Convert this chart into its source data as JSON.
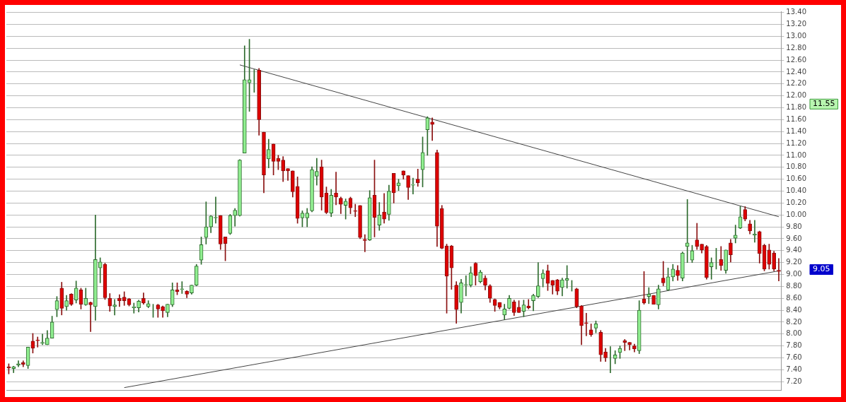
{
  "chart_data": {
    "type": "candlestick",
    "categories": [
      null,
      null,
      null,
      null,
      null,
      null,
      null,
      null,
      null,
      null,
      null,
      null,
      null,
      null,
      null,
      null,
      null,
      null,
      null,
      null,
      null,
      null,
      null,
      null,
      null,
      null,
      null,
      null,
      null,
      null,
      null,
      null,
      null,
      null,
      null,
      null,
      null,
      null,
      null,
      null,
      null,
      null,
      null,
      null,
      null,
      null,
      null,
      null,
      null,
      null,
      null,
      null,
      null,
      null,
      null,
      null,
      null,
      null,
      null,
      null,
      null,
      null,
      null,
      null,
      null,
      null,
      null,
      null,
      null,
      null,
      null,
      null,
      null,
      null,
      null,
      null,
      null,
      null,
      null,
      null,
      null,
      null,
      null,
      null,
      null,
      null,
      null,
      null,
      null,
      null,
      null,
      null,
      null,
      null,
      null,
      null,
      null,
      null,
      null,
      null,
      null,
      null,
      null,
      null,
      null,
      null,
      null,
      null,
      null,
      null,
      null,
      null,
      null,
      null,
      null,
      null,
      null,
      null,
      null,
      null,
      null,
      null,
      null,
      null,
      null,
      null,
      null,
      null,
      null,
      null,
      null,
      null,
      null,
      null,
      null,
      null,
      null,
      null,
      null,
      null,
      null,
      null,
      null,
      null,
      null,
      null,
      null,
      null,
      null,
      null,
      null,
      null,
      null,
      null,
      null,
      null,
      null,
      null,
      null,
      null,
      null
    ],
    "ohlc": [
      [
        7.45,
        7.5,
        7.33,
        7.43
      ],
      [
        7.42,
        7.46,
        7.35,
        7.45
      ],
      [
        7.48,
        7.55,
        7.45,
        7.5
      ],
      [
        7.52,
        7.55,
        7.45,
        7.49
      ],
      [
        7.47,
        7.78,
        7.42,
        7.78
      ],
      [
        7.88,
        8.01,
        7.68,
        7.76
      ],
      [
        7.9,
        7.95,
        7.78,
        7.89
      ],
      [
        7.84,
        8.0,
        7.82,
        7.86
      ],
      [
        7.82,
        8.06,
        7.82,
        7.93
      ],
      [
        7.93,
        8.3,
        7.93,
        8.2
      ],
      [
        8.41,
        8.63,
        8.29,
        8.56
      ],
      [
        8.77,
        8.87,
        8.32,
        8.43
      ],
      [
        8.46,
        8.65,
        8.4,
        8.56
      ],
      [
        8.67,
        8.68,
        8.48,
        8.5
      ],
      [
        8.57,
        8.89,
        8.52,
        8.77
      ],
      [
        8.74,
        8.77,
        8.42,
        8.5
      ],
      [
        8.49,
        8.77,
        8.48,
        8.6
      ],
      [
        8.53,
        8.54,
        8.04,
        8.49
      ],
      [
        8.46,
        10.0,
        8.23,
        9.25
      ],
      [
        9.11,
        9.28,
        8.86,
        9.21
      ],
      [
        9.17,
        9.19,
        8.58,
        8.61
      ],
      [
        8.6,
        8.68,
        8.38,
        8.47
      ],
      [
        8.46,
        8.58,
        8.32,
        8.49
      ],
      [
        8.6,
        8.66,
        8.46,
        8.56
      ],
      [
        8.62,
        8.71,
        8.48,
        8.56
      ],
      [
        8.59,
        8.6,
        8.47,
        8.49
      ],
      [
        8.44,
        8.52,
        8.35,
        8.46
      ],
      [
        8.44,
        8.57,
        8.37,
        8.55
      ],
      [
        8.6,
        8.69,
        8.5,
        8.52
      ],
      [
        8.46,
        8.56,
        8.44,
        8.51
      ],
      [
        8.49,
        8.5,
        8.28,
        8.49
      ],
      [
        8.49,
        8.5,
        8.28,
        8.42
      ],
      [
        8.46,
        8.47,
        8.28,
        8.39
      ],
      [
        8.36,
        8.5,
        8.29,
        8.5
      ],
      [
        8.49,
        8.86,
        8.46,
        8.74
      ],
      [
        8.74,
        8.86,
        8.66,
        8.71
      ],
      [
        8.75,
        8.88,
        8.68,
        8.76
      ],
      [
        8.72,
        8.73,
        8.61,
        8.67
      ],
      [
        8.69,
        8.82,
        8.67,
        8.82
      ],
      [
        8.82,
        9.17,
        8.81,
        9.14
      ],
      [
        9.24,
        9.63,
        9.17,
        9.5
      ],
      [
        9.62,
        10.22,
        9.51,
        9.8
      ],
      [
        9.8,
        9.99,
        9.7,
        9.98
      ],
      [
        9.95,
        10.3,
        9.86,
        9.96
      ],
      [
        9.99,
        9.99,
        9.42,
        9.51
      ],
      [
        9.63,
        9.63,
        9.23,
        9.52
      ],
      [
        9.69,
        10.01,
        9.67,
        9.99
      ],
      [
        9.99,
        10.11,
        9.81,
        10.08
      ],
      [
        9.99,
        10.93,
        9.98,
        10.92
      ],
      [
        11.04,
        12.84,
        11.04,
        12.27
      ],
      [
        12.22,
        12.95,
        11.74,
        12.27
      ],
      [
        12.36,
        12.44,
        12.06,
        12.36
      ],
      [
        12.43,
        12.46,
        11.34,
        11.6
      ],
      [
        11.39,
        11.39,
        10.37,
        10.67
      ],
      [
        10.94,
        11.27,
        10.79,
        11.1
      ],
      [
        11.19,
        11.19,
        10.67,
        10.9
      ],
      [
        10.95,
        11.0,
        10.76,
        10.9
      ],
      [
        10.92,
        10.98,
        10.56,
        10.74
      ],
      [
        10.78,
        10.78,
        10.58,
        10.74
      ],
      [
        10.74,
        10.74,
        10.3,
        10.39
      ],
      [
        10.48,
        10.64,
        9.86,
        9.94
      ],
      [
        9.95,
        10.07,
        9.8,
        10.03
      ],
      [
        9.95,
        10.11,
        9.8,
        10.03
      ],
      [
        10.07,
        10.81,
        10.05,
        10.76
      ],
      [
        10.65,
        10.95,
        10.5,
        10.73
      ],
      [
        10.81,
        10.92,
        10.08,
        10.3
      ],
      [
        10.37,
        10.47,
        10.02,
        10.04
      ],
      [
        10.03,
        10.43,
        9.97,
        10.33
      ],
      [
        10.37,
        10.72,
        10.17,
        10.3
      ],
      [
        10.28,
        10.3,
        10.02,
        10.18
      ],
      [
        10.16,
        10.27,
        9.93,
        10.23
      ],
      [
        10.28,
        10.3,
        10.02,
        10.12
      ],
      [
        10.07,
        10.18,
        9.97,
        10.06
      ],
      [
        10.16,
        10.16,
        9.6,
        9.62
      ],
      [
        9.59,
        9.67,
        9.38,
        9.57
      ],
      [
        9.58,
        10.41,
        9.57,
        10.29
      ],
      [
        10.33,
        10.92,
        9.63,
        9.96
      ],
      [
        9.83,
        10.21,
        9.74,
        10.0
      ],
      [
        10.05,
        10.36,
        9.86,
        9.93
      ],
      [
        10.01,
        10.5,
        9.91,
        10.4
      ],
      [
        10.7,
        10.7,
        10.2,
        10.37
      ],
      [
        10.49,
        10.6,
        10.41,
        10.54
      ],
      [
        10.74,
        10.74,
        10.6,
        10.67
      ],
      [
        10.66,
        10.66,
        10.26,
        10.46
      ],
      [
        10.5,
        10.62,
        10.35,
        10.51
      ],
      [
        10.6,
        10.77,
        10.48,
        10.54
      ],
      [
        10.76,
        11.31,
        10.47,
        11.05
      ],
      [
        11.43,
        11.65,
        11.0,
        11.63
      ],
      [
        11.56,
        11.63,
        11.25,
        11.52
      ],
      [
        11.05,
        11.09,
        9.47,
        9.81
      ],
      [
        10.11,
        10.16,
        9.43,
        9.44
      ],
      [
        9.48,
        9.51,
        8.35,
        8.97
      ],
      [
        9.48,
        9.49,
        8.75,
        9.11
      ],
      [
        8.82,
        8.88,
        8.18,
        8.41
      ],
      [
        8.53,
        8.92,
        8.35,
        8.86
      ],
      [
        8.82,
        8.98,
        8.64,
        8.83
      ],
      [
        8.82,
        9.13,
        8.79,
        9.03
      ],
      [
        9.19,
        9.2,
        8.82,
        8.98
      ],
      [
        8.88,
        9.07,
        8.86,
        9.04
      ],
      [
        8.94,
        8.98,
        8.74,
        8.82
      ],
      [
        8.81,
        8.83,
        8.53,
        8.6
      ],
      [
        8.58,
        8.59,
        8.38,
        8.48
      ],
      [
        8.53,
        8.53,
        8.42,
        8.45
      ],
      [
        8.32,
        8.5,
        8.24,
        8.42
      ],
      [
        8.43,
        8.65,
        8.42,
        8.6
      ],
      [
        8.54,
        8.57,
        8.31,
        8.36
      ],
      [
        8.45,
        8.56,
        8.36,
        8.36
      ],
      [
        8.38,
        8.57,
        8.29,
        8.49
      ],
      [
        8.47,
        8.58,
        8.42,
        8.44
      ],
      [
        8.56,
        8.67,
        8.39,
        8.65
      ],
      [
        8.63,
        9.2,
        8.61,
        8.81
      ],
      [
        8.93,
        9.08,
        8.79,
        9.02
      ],
      [
        9.06,
        9.16,
        8.73,
        8.85
      ],
      [
        8.9,
        8.9,
        8.67,
        8.82
      ],
      [
        8.91,
        8.92,
        8.66,
        8.72
      ],
      [
        8.78,
        8.94,
        8.64,
        8.91
      ],
      [
        8.9,
        9.15,
        8.77,
        8.93
      ],
      [
        8.81,
        8.9,
        8.72,
        8.81
      ],
      [
        8.76,
        8.77,
        8.44,
        8.46
      ],
      [
        8.47,
        8.48,
        7.82,
        8.14
      ],
      [
        8.19,
        8.35,
        7.97,
        8.18
      ],
      [
        8.07,
        8.17,
        7.96,
        7.99
      ],
      [
        8.1,
        8.22,
        8.02,
        8.17
      ],
      [
        8.03,
        8.06,
        7.54,
        7.65
      ],
      [
        7.7,
        7.76,
        7.54,
        7.6
      ],
      [
        7.6,
        7.79,
        7.35,
        7.6
      ],
      [
        7.59,
        7.72,
        7.5,
        7.65
      ],
      [
        7.69,
        7.8,
        7.59,
        7.76
      ],
      [
        7.89,
        7.91,
        7.72,
        7.86
      ],
      [
        7.86,
        7.86,
        7.73,
        7.82
      ],
      [
        7.8,
        7.83,
        7.7,
        7.75
      ],
      [
        7.72,
        8.56,
        7.67,
        8.4
      ],
      [
        8.59,
        9.05,
        8.5,
        8.52
      ],
      [
        8.63,
        8.78,
        8.51,
        8.67
      ],
      [
        8.65,
        8.65,
        8.5,
        8.5
      ],
      [
        8.49,
        8.82,
        8.42,
        8.76
      ],
      [
        8.94,
        9.22,
        8.81,
        8.86
      ],
      [
        8.74,
        9.11,
        8.73,
        8.96
      ],
      [
        8.96,
        9.17,
        8.89,
        9.09
      ],
      [
        9.07,
        9.15,
        8.9,
        8.98
      ],
      [
        8.94,
        9.38,
        8.89,
        9.36
      ],
      [
        9.47,
        10.26,
        9.2,
        9.53
      ],
      [
        9.24,
        9.49,
        9.2,
        9.4
      ],
      [
        9.58,
        9.86,
        9.42,
        9.47
      ],
      [
        9.51,
        9.51,
        9.36,
        9.41
      ],
      [
        9.47,
        9.49,
        8.92,
        8.95
      ],
      [
        9.13,
        9.28,
        8.92,
        9.2
      ],
      [
        9.25,
        9.44,
        9.09,
        9.25
      ],
      [
        9.25,
        9.47,
        9.07,
        9.15
      ],
      [
        9.07,
        9.41,
        9.02,
        9.41
      ],
      [
        9.53,
        9.59,
        9.21,
        9.33
      ],
      [
        9.61,
        9.83,
        9.53,
        9.66
      ],
      [
        9.78,
        10.14,
        9.77,
        9.97
      ],
      [
        10.09,
        10.14,
        9.9,
        9.93
      ],
      [
        9.85,
        9.91,
        9.68,
        9.73
      ],
      [
        9.66,
        9.91,
        9.54,
        9.68
      ],
      [
        9.72,
        9.73,
        9.19,
        9.35
      ],
      [
        9.49,
        9.51,
        9.06,
        9.09
      ],
      [
        9.41,
        9.51,
        9.09,
        9.17
      ],
      [
        9.36,
        9.39,
        9.06,
        9.09
      ],
      [
        9.07,
        9.27,
        8.89,
        9.05
      ]
    ],
    "series": [
      {
        "type": "line",
        "color": "#444444",
        "values": [
          null,
          null,
          null,
          null,
          null,
          null,
          null,
          null,
          null,
          null,
          null,
          null,
          null,
          null,
          null,
          null,
          null,
          null,
          null,
          null,
          null,
          null,
          null,
          null,
          null,
          null,
          null,
          null,
          null,
          null,
          null,
          null,
          null,
          null,
          null,
          null,
          null,
          null,
          null,
          null,
          null,
          null,
          null,
          null,
          null,
          null,
          null,
          null,
          12.52,
          null,
          null,
          null,
          null,
          null,
          null,
          null,
          null,
          null,
          null,
          null,
          null,
          null,
          null,
          null,
          null,
          null,
          null,
          null,
          null,
          null,
          null,
          null,
          null,
          null,
          null,
          null,
          null,
          null,
          null,
          null,
          null,
          null,
          null,
          null,
          null,
          null,
          null,
          null,
          null,
          null,
          null,
          null,
          null,
          null,
          null,
          null,
          null,
          null,
          null,
          null,
          null,
          null,
          null,
          null,
          null,
          null,
          null,
          null,
          null,
          null,
          null,
          null,
          null,
          null,
          null,
          null,
          null,
          null,
          null,
          null,
          null,
          null,
          null,
          null,
          null,
          null,
          null,
          null,
          null,
          null,
          null,
          null,
          null,
          null,
          null,
          null,
          null,
          null,
          null,
          null,
          null,
          null,
          null,
          null,
          null,
          null,
          null,
          null,
          null,
          null,
          null,
          null,
          null,
          null,
          null,
          null,
          null,
          null,
          null,
          null,
          9.97
        ]
      },
      {
        "type": "line",
        "color": "#444444",
        "values": [
          null,
          null,
          null,
          null,
          null,
          null,
          null,
          null,
          null,
          null,
          null,
          null,
          null,
          null,
          null,
          null,
          null,
          null,
          null,
          null,
          null,
          null,
          null,
          null,
          7.1,
          null,
          null,
          null,
          null,
          null,
          null,
          null,
          null,
          null,
          null,
          null,
          null,
          null,
          null,
          null,
          null,
          null,
          null,
          null,
          null,
          null,
          null,
          null,
          null,
          null,
          null,
          null,
          null,
          null,
          null,
          null,
          null,
          null,
          null,
          null,
          null,
          null,
          null,
          null,
          null,
          null,
          null,
          null,
          null,
          null,
          null,
          null,
          null,
          null,
          null,
          null,
          null,
          null,
          null,
          null,
          null,
          null,
          null,
          null,
          null,
          null,
          null,
          null,
          null,
          null,
          null,
          null,
          null,
          null,
          null,
          null,
          null,
          null,
          null,
          null,
          null,
          null,
          null,
          null,
          null,
          null,
          null,
          null,
          null,
          null,
          null,
          null,
          null,
          null,
          null,
          null,
          null,
          null,
          null,
          null,
          null,
          null,
          null,
          null,
          null,
          null,
          null,
          null,
          null,
          null,
          null,
          null,
          null,
          null,
          null,
          null,
          null,
          null,
          null,
          null,
          null,
          null,
          null,
          null,
          null,
          null,
          null,
          null,
          null,
          null,
          null,
          null,
          null,
          null,
          null,
          null,
          null,
          null,
          null,
          null,
          9.06
        ]
      }
    ],
    "ylim": [
      7.06,
      13.42
    ],
    "yticks": [
      {
        "value": 7.2,
        "label": "7.20"
      },
      {
        "value": 7.4,
        "label": "7.40"
      },
      {
        "value": 7.6,
        "label": "7.60"
      },
      {
        "value": 7.8,
        "label": "7.80"
      },
      {
        "value": 8.0,
        "label": "8.00"
      },
      {
        "value": 8.2,
        "label": "8.20"
      },
      {
        "value": 8.4,
        "label": "8.40"
      },
      {
        "value": 8.6,
        "label": "8.60"
      },
      {
        "value": 8.8,
        "label": "8.80"
      },
      {
        "value": 9.0,
        "label": "9.00"
      },
      {
        "value": 9.2,
        "label": "9.20"
      },
      {
        "value": 9.4,
        "label": "9.40"
      },
      {
        "value": 9.6,
        "label": "9.60"
      },
      {
        "value": 9.8,
        "label": "9.80"
      },
      {
        "value": 10.0,
        "label": "10.00"
      },
      {
        "value": 10.2,
        "label": "10.20"
      },
      {
        "value": 10.4,
        "label": "10.40"
      },
      {
        "value": 10.6,
        "label": "10.60"
      },
      {
        "value": 10.8,
        "label": "10.80"
      },
      {
        "value": 11.0,
        "label": "11.00"
      },
      {
        "value": 11.2,
        "label": "11.20"
      },
      {
        "value": 11.4,
        "label": "11.40"
      },
      {
        "value": 11.6,
        "label": "11.60"
      },
      {
        "value": 11.8,
        "label": "11.80"
      },
      {
        "value": 12.0,
        "label": "12.00"
      },
      {
        "value": 12.2,
        "label": "12.20"
      },
      {
        "value": 12.4,
        "label": "12.40"
      },
      {
        "value": 12.6,
        "label": "12.60"
      },
      {
        "value": 12.8,
        "label": "12.80"
      },
      {
        "value": 13.0,
        "label": "13.00"
      },
      {
        "value": 13.2,
        "label": "13.20"
      },
      {
        "value": 13.4,
        "label": "13.40"
      }
    ],
    "annotations": [
      "11.55",
      "9.05"
    ],
    "grid": "y",
    "tick_labels": "y"
  }
}
